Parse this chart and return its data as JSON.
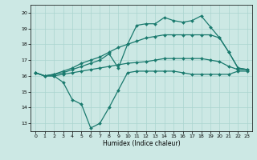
{
  "xlabel": "Humidex (Indice chaleur)",
  "x_values": [
    0,
    1,
    2,
    3,
    4,
    5,
    6,
    7,
    8,
    9,
    10,
    11,
    12,
    13,
    14,
    15,
    16,
    17,
    18,
    19,
    20,
    21,
    22,
    23
  ],
  "s1": [
    16.2,
    16.0,
    16.1,
    16.2,
    16.4,
    16.6,
    16.8,
    17.0,
    17.4,
    16.5,
    18.0,
    19.2,
    19.3,
    19.3,
    19.7,
    19.5,
    19.4,
    19.5,
    19.8,
    19.1,
    18.4,
    17.5,
    16.5,
    16.4
  ],
  "s2": [
    16.2,
    16.0,
    16.1,
    16.3,
    16.5,
    16.8,
    17.0,
    17.2,
    17.5,
    17.8,
    18.0,
    18.2,
    18.4,
    18.5,
    18.6,
    18.6,
    18.6,
    18.6,
    18.6,
    18.6,
    18.4,
    17.5,
    16.5,
    16.4
  ],
  "s3": [
    16.2,
    16.0,
    16.0,
    16.1,
    16.2,
    16.3,
    16.4,
    16.5,
    16.6,
    16.7,
    16.8,
    16.85,
    16.9,
    17.0,
    17.1,
    17.1,
    17.1,
    17.1,
    17.1,
    17.0,
    16.9,
    16.6,
    16.4,
    16.4
  ],
  "s4": [
    16.2,
    16.0,
    16.0,
    15.6,
    14.5,
    14.2,
    12.7,
    13.0,
    14.0,
    15.1,
    16.2,
    16.3,
    16.3,
    16.3,
    16.3,
    16.3,
    16.2,
    16.1,
    16.1,
    16.1,
    16.1,
    16.1,
    16.3,
    16.3
  ],
  "ylim": [
    12.5,
    20.5
  ],
  "yticks": [
    13,
    14,
    15,
    16,
    17,
    18,
    19,
    20
  ],
  "xlim": [
    -0.5,
    23.5
  ],
  "xticks": [
    0,
    1,
    2,
    3,
    4,
    5,
    6,
    7,
    8,
    9,
    10,
    11,
    12,
    13,
    14,
    15,
    16,
    17,
    18,
    19,
    20,
    21,
    22,
    23
  ],
  "bg_color": "#cce8e4",
  "grid_color": "#aad4cf",
  "line_color": "#1a7a6e"
}
